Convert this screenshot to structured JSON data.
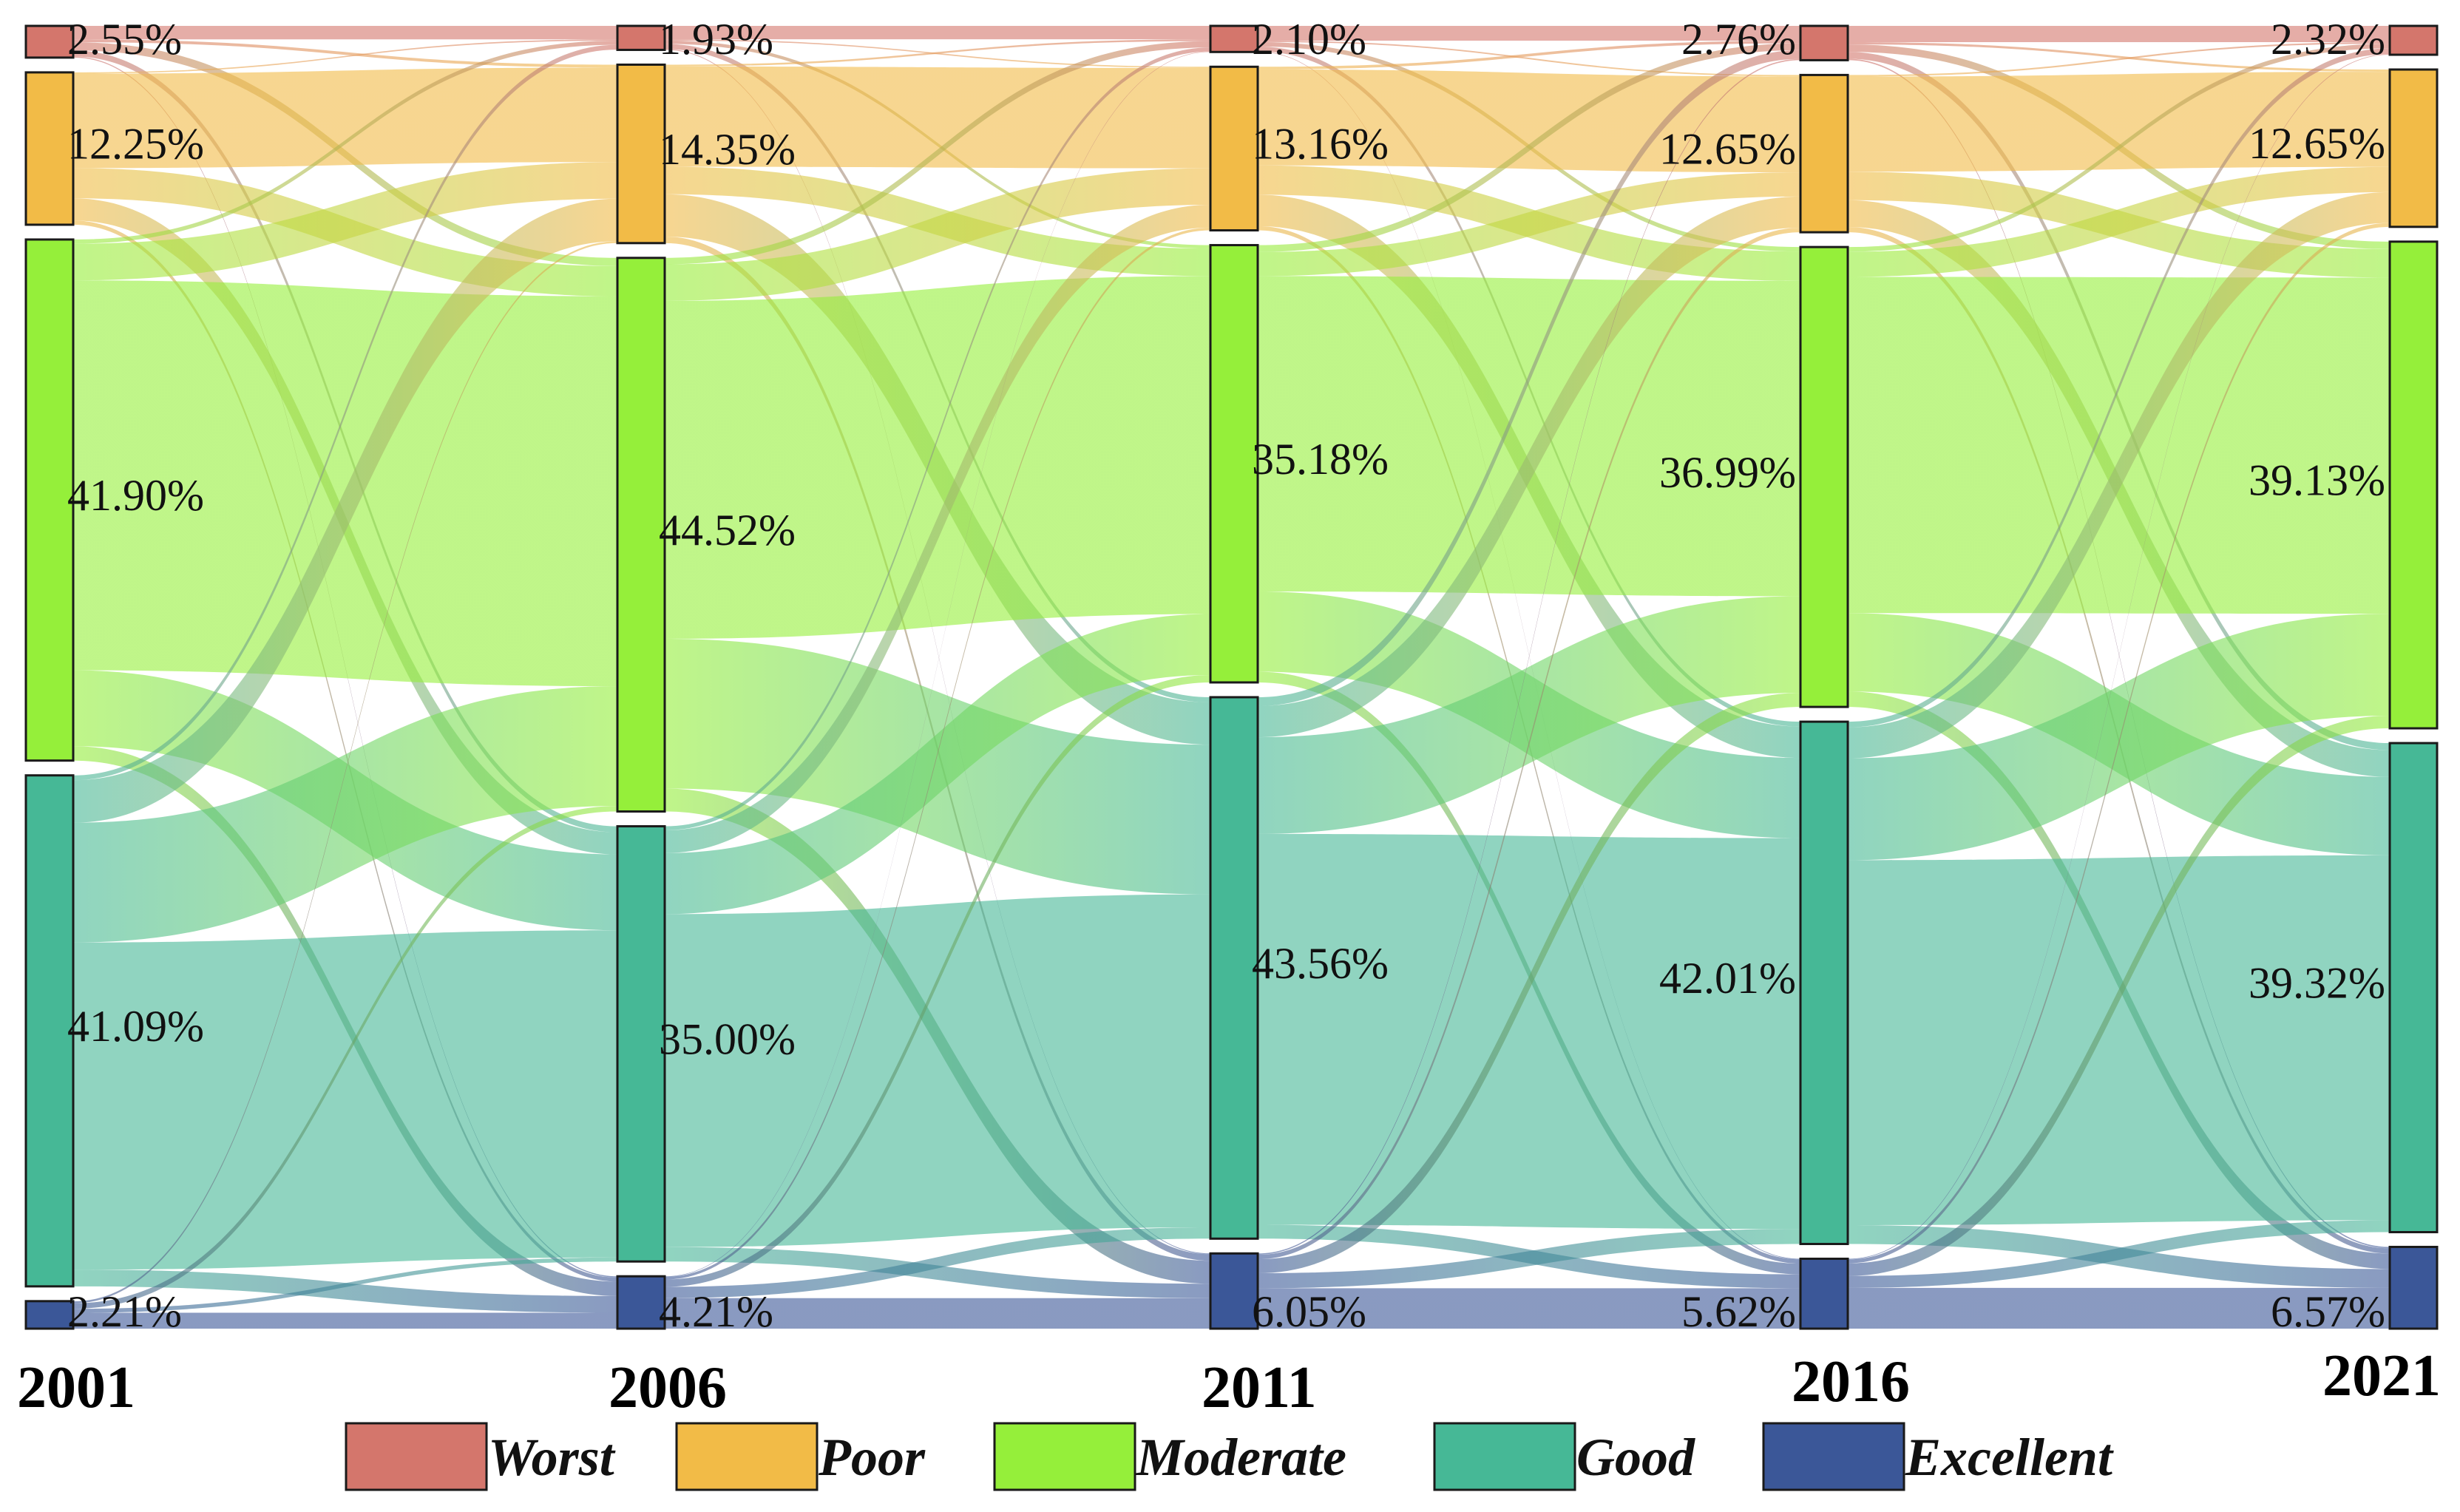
{
  "chart_data": {
    "type": "sankey",
    "stages": [
      "2001",
      "2006",
      "2011",
      "2016",
      "2021"
    ],
    "categories": [
      "Worst",
      "Poor",
      "Moderate",
      "Good",
      "Excellent"
    ],
    "colors": {
      "Worst": "#d4766c",
      "Poor": "#f2bb47",
      "Moderate": "#95ef3a",
      "Good": "#46b896",
      "Excellent": "#3b5798"
    },
    "shares": [
      {
        "year": "2001",
        "values": [
          2.55,
          12.25,
          41.9,
          41.09,
          2.21
        ],
        "labels": [
          "2.55%",
          "12.25%",
          "41.90%",
          "41.09%",
          "2.21%"
        ]
      },
      {
        "year": "2006",
        "values": [
          1.93,
          14.35,
          44.52,
          35.0,
          4.21
        ],
        "labels": [
          "1.93%",
          "14.35%",
          "44.52%",
          "35.00%",
          "4.21%"
        ]
      },
      {
        "year": "2011",
        "values": [
          2.1,
          13.16,
          35.18,
          43.56,
          6.05
        ],
        "labels": [
          "2.10%",
          "13.16%",
          "35.18%",
          "43.56%",
          "6.05%"
        ]
      },
      {
        "year": "2016",
        "values": [
          2.76,
          12.65,
          36.99,
          42.01,
          5.62
        ],
        "labels": [
          "2.76%",
          "12.65%",
          "36.99%",
          "42.01%",
          "5.62%"
        ]
      },
      {
        "year": "2021",
        "values": [
          2.32,
          12.65,
          39.13,
          39.32,
          6.57
        ],
        "labels": [
          "2.32%",
          "12.65%",
          "39.13%",
          "39.32%",
          "6.57%"
        ]
      }
    ],
    "legend": {
      "position": "bottom",
      "items": [
        "Worst",
        "Poor",
        "Moderate",
        "Good",
        "Excellent"
      ]
    }
  }
}
